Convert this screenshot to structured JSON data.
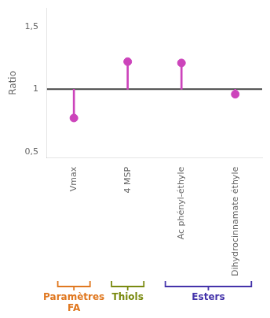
{
  "chart_data": {
    "type": "lollipop",
    "categories": [
      "Vmax",
      "4 MSP",
      "Ac phényl-éthyle",
      "Dihydrocinnamate éthyle"
    ],
    "values": [
      0.77,
      1.22,
      1.21,
      0.96
    ],
    "color": "#cc44bb",
    "baseline": 1.0,
    "ylabel": "Ratio",
    "ylim": [
      0.45,
      1.65
    ],
    "yticks": [
      {
        "value": 0.5,
        "label": "0,5"
      },
      1,
      {
        "value": 1.5,
        "label": "1,5"
      }
    ],
    "grid": false,
    "annotations": [
      {
        "text": "Paramètres\nFA",
        "color": "#e07820",
        "categories": [
          "Vmax"
        ]
      },
      {
        "text": "Thiols",
        "color": "#7a8a10",
        "categories": [
          "4 MSP"
        ]
      },
      {
        "text": "Esters",
        "color": "#4433aa",
        "categories": [
          "Ac phényl-éthyle",
          "Dihydrocinnamate éthyle"
        ]
      }
    ]
  }
}
